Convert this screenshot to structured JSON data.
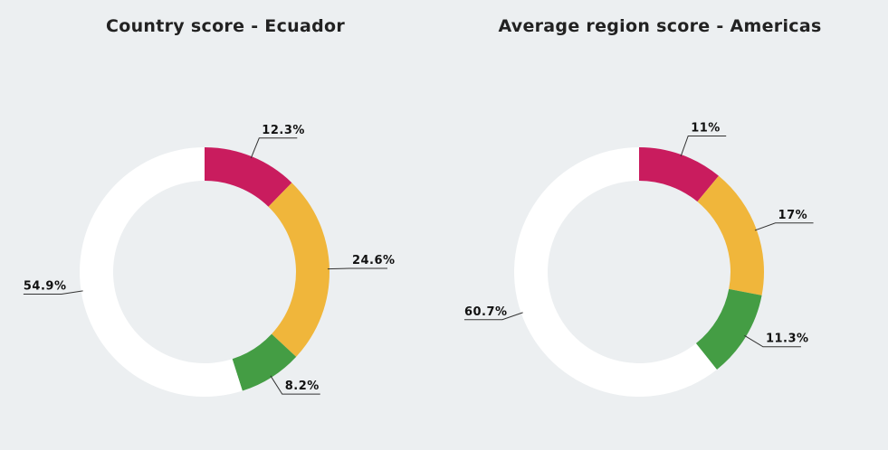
{
  "chart_data": [
    {
      "type": "pie",
      "variant": "donut",
      "title": "Country score - Ecuador",
      "slices": [
        {
          "value": 12.3,
          "label": "12.3%",
          "color": "#c91c5e"
        },
        {
          "value": 24.6,
          "label": "24.6%",
          "color": "#f0b63b"
        },
        {
          "value": 8.2,
          "label": "8.2%",
          "color": "#449d44"
        },
        {
          "value": 54.9,
          "label": "54.9%",
          "color": "#ffffff"
        }
      ]
    },
    {
      "type": "pie",
      "variant": "donut",
      "title": "Average region score - Americas",
      "slices": [
        {
          "value": 11,
          "label": "11%",
          "color": "#c91c5e"
        },
        {
          "value": 17,
          "label": "17%",
          "color": "#f0b63b"
        },
        {
          "value": 11.3,
          "label": "11.3%",
          "color": "#449d44"
        },
        {
          "value": 60.7,
          "label": "60.7%",
          "color": "#ffffff"
        }
      ]
    }
  ],
  "background": "#eceff1"
}
